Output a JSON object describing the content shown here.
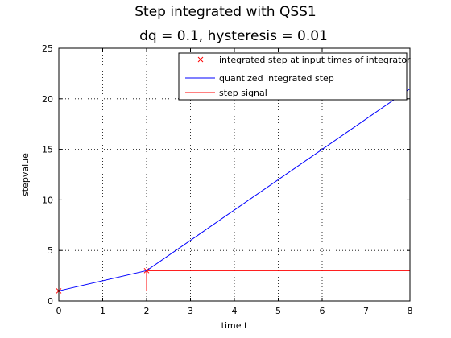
{
  "chart_data": {
    "type": "line",
    "title_line1": "Step integrated with QSS1",
    "title_line2": "dq = 0.1, hysteresis = 0.01",
    "xlabel": "time t",
    "ylabel": "stepvalue",
    "xlim": [
      0,
      8
    ],
    "ylim": [
      0,
      25
    ],
    "xticks": [
      0,
      1,
      2,
      3,
      4,
      5,
      6,
      7,
      8
    ],
    "yticks": [
      0,
      5,
      10,
      15,
      20,
      25
    ],
    "grid": true,
    "legend_position": "top-right",
    "legend": [
      {
        "label": "integrated step at input times of integrator",
        "style": "marker-x",
        "color": "#ff0000"
      },
      {
        "label": "quantized integrated step",
        "style": "line",
        "color": "#0000ff"
      },
      {
        "label": "step signal",
        "style": "line",
        "color": "#ff0000"
      }
    ],
    "series": [
      {
        "name": "integrated step at input times of integrator",
        "kind": "markers",
        "color": "#ff0000",
        "x": [
          0,
          2
        ],
        "y": [
          1,
          3
        ]
      },
      {
        "name": "quantized integrated step",
        "kind": "line",
        "color": "#0000ff",
        "x": [
          0,
          2,
          8
        ],
        "y": [
          1,
          3,
          21
        ]
      },
      {
        "name": "step signal",
        "kind": "step",
        "color": "#ff0000",
        "x": [
          0,
          2,
          2,
          8
        ],
        "y": [
          1,
          1,
          3,
          3
        ]
      }
    ]
  }
}
